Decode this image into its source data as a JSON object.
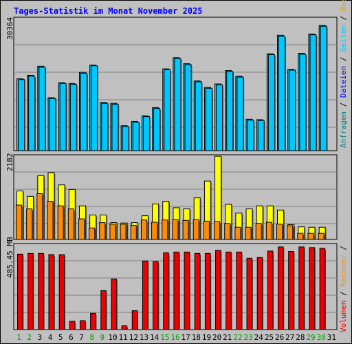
{
  "title": "Tages-Statistik im Monat November 2025",
  "colors": {
    "background": "#c0c0c0",
    "title": "#0000ff",
    "anfragen": "#00c8ff",
    "dateien": "#00c8ff",
    "seiten": "#ffff00",
    "besuche": "#ff8c00",
    "volumen": "#ee0000",
    "weekday_label": "#000000",
    "weekend_label": "#00a000"
  },
  "chart_data": [
    {
      "type": "bar",
      "panel": "hits",
      "ylabel": "30364",
      "ylim": [
        0,
        30364
      ],
      "grid": true,
      "legend": [
        "Anfragen",
        "Dateien"
      ],
      "categories": [
        "1",
        "2",
        "3",
        "4",
        "5",
        "6",
        "7",
        "8",
        "9",
        "10",
        "11",
        "12",
        "13",
        "14",
        "15",
        "16",
        "17",
        "18",
        "19",
        "20",
        "21",
        "22",
        "23",
        "24",
        "25",
        "26",
        "27",
        "28",
        "29",
        "30",
        "31"
      ],
      "series": [
        {
          "name": "Anfragen",
          "values": [
            16700,
            17500,
            19600,
            12300,
            15800,
            15600,
            18200,
            19900,
            11200,
            11000,
            5800,
            6800,
            8100,
            10000,
            19000,
            21600,
            20200,
            16200,
            14700,
            15500,
            18600,
            17300,
            7300,
            7200,
            22500,
            26800,
            18900,
            22600,
            27100,
            29100,
            0
          ]
        },
        {
          "name": "Dateien",
          "values": [
            16500,
            17300,
            19400,
            12100,
            15600,
            15400,
            18000,
            19700,
            11000,
            10800,
            5600,
            6600,
            7900,
            9800,
            18800,
            21400,
            20000,
            16000,
            14500,
            15300,
            18400,
            17100,
            7100,
            7000,
            22300,
            26600,
            18700,
            22400,
            26900,
            28900,
            0
          ]
        }
      ]
    },
    {
      "type": "bar",
      "panel": "visits",
      "ylabel": "2182",
      "ylim": [
        0,
        2182
      ],
      "grid": true,
      "legend": [
        "Seiten",
        "Besuche"
      ],
      "categories": [
        "1",
        "2",
        "3",
        "4",
        "5",
        "6",
        "7",
        "8",
        "9",
        "10",
        "11",
        "12",
        "13",
        "14",
        "15",
        "16",
        "17",
        "18",
        "19",
        "20",
        "21",
        "22",
        "23",
        "24",
        "25",
        "26",
        "27",
        "28",
        "29",
        "30",
        "31"
      ],
      "series": [
        {
          "name": "Seiten",
          "values": [
            1270,
            1130,
            1670,
            1750,
            1430,
            1310,
            880,
            640,
            640,
            440,
            430,
            440,
            620,
            930,
            1000,
            830,
            800,
            1090,
            1530,
            2180,
            920,
            690,
            800,
            880,
            880,
            770,
            390,
            330,
            320,
            320,
            0
          ]
        },
        {
          "name": "Besuche",
          "values": [
            900,
            800,
            1200,
            1000,
            880,
            800,
            540,
            300,
            440,
            400,
            400,
            370,
            510,
            450,
            510,
            520,
            500,
            520,
            480,
            470,
            420,
            320,
            320,
            420,
            450,
            400,
            360,
            160,
            160,
            160,
            0
          ]
        }
      ]
    },
    {
      "type": "bar",
      "panel": "volume",
      "ylabel": "485.45 MB",
      "ylim": [
        0,
        485.45
      ],
      "grid": true,
      "legend": [
        "Volumen"
      ],
      "categories": [
        "1",
        "2",
        "3",
        "4",
        "5",
        "6",
        "7",
        "8",
        "9",
        "10",
        "11",
        "12",
        "13",
        "14",
        "15",
        "16",
        "17",
        "18",
        "19",
        "20",
        "21",
        "22",
        "23",
        "24",
        "25",
        "26",
        "27",
        "28",
        "29",
        "30",
        "31"
      ],
      "series": [
        {
          "name": "Volumen",
          "values": [
            440,
            444,
            444,
            437,
            437,
            48,
            52,
            95,
            227,
            295,
            22,
            110,
            400,
            396,
            448,
            452,
            452,
            444,
            444,
            462,
            452,
            452,
            416,
            420,
            458,
            482,
            455,
            482,
            478,
            474,
            0
          ]
        }
      ]
    }
  ],
  "legend_labels": {
    "anfragen": "Anfragen",
    "dateien": "Dateien",
    "seiten": "Seiten",
    "besuche": "Besuche",
    "rechner": "Rechner",
    "volumen": "Volumen",
    "sep": " / "
  },
  "day_labels": [
    "1",
    "2",
    "3",
    "4",
    "5",
    "6",
    "7",
    "8",
    "9",
    "10",
    "11",
    "12",
    "13",
    "14",
    "15",
    "16",
    "17",
    "18",
    "19",
    "20",
    "21",
    "22",
    "23",
    "24",
    "25",
    "26",
    "27",
    "28",
    "29",
    "30",
    "31"
  ],
  "weekend_days": [
    1,
    2,
    8,
    9,
    15,
    16,
    22,
    23,
    29,
    30
  ]
}
